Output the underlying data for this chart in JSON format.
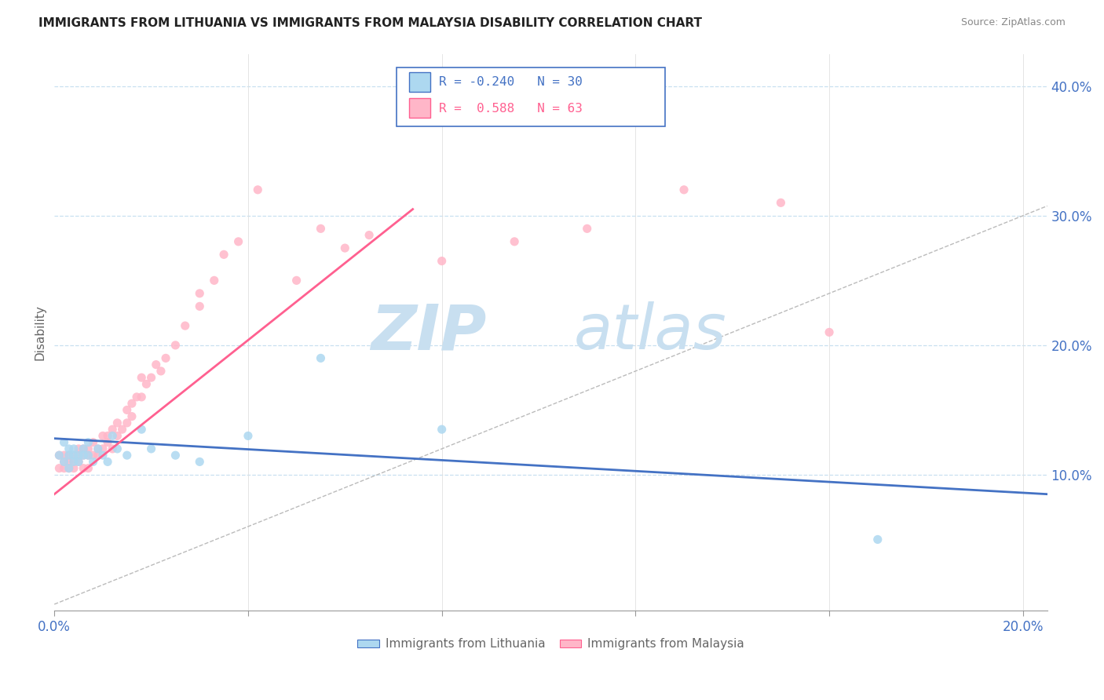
{
  "title": "IMMIGRANTS FROM LITHUANIA VS IMMIGRANTS FROM MALAYSIA DISABILITY CORRELATION CHART",
  "source": "Source: ZipAtlas.com",
  "ylabel": "Disability",
  "xlim": [
    0.0,
    0.205
  ],
  "ylim": [
    -0.005,
    0.425
  ],
  "color_lithuania": "#ADD8F0",
  "color_malaysia": "#FFB6C8",
  "line_color_lithuania": "#4472C4",
  "line_color_malaysia": "#FF6090",
  "R_lithuania": -0.24,
  "N_lithuania": 30,
  "R_malaysia": 0.588,
  "N_malaysia": 63,
  "legend_label_lithuania": "Immigrants from Lithuania",
  "legend_label_malaysia": "Immigrants from Malaysia",
  "lit_x": [
    0.001,
    0.002,
    0.002,
    0.003,
    0.003,
    0.003,
    0.004,
    0.004,
    0.004,
    0.005,
    0.005,
    0.006,
    0.006,
    0.007,
    0.007,
    0.008,
    0.009,
    0.01,
    0.011,
    0.012,
    0.013,
    0.015,
    0.018,
    0.02,
    0.025,
    0.03,
    0.04,
    0.055,
    0.08,
    0.17
  ],
  "lit_y": [
    0.115,
    0.125,
    0.11,
    0.12,
    0.115,
    0.105,
    0.115,
    0.11,
    0.12,
    0.115,
    0.11,
    0.12,
    0.115,
    0.125,
    0.115,
    0.11,
    0.12,
    0.115,
    0.11,
    0.13,
    0.12,
    0.115,
    0.135,
    0.12,
    0.115,
    0.11,
    0.13,
    0.19,
    0.135,
    0.05
  ],
  "mal_x": [
    0.001,
    0.001,
    0.002,
    0.002,
    0.002,
    0.003,
    0.003,
    0.003,
    0.004,
    0.004,
    0.004,
    0.005,
    0.005,
    0.005,
    0.006,
    0.006,
    0.006,
    0.007,
    0.007,
    0.007,
    0.008,
    0.008,
    0.009,
    0.009,
    0.01,
    0.01,
    0.011,
    0.011,
    0.012,
    0.012,
    0.013,
    0.013,
    0.014,
    0.015,
    0.015,
    0.016,
    0.016,
    0.017,
    0.018,
    0.018,
    0.019,
    0.02,
    0.021,
    0.022,
    0.023,
    0.025,
    0.027,
    0.03,
    0.03,
    0.033,
    0.035,
    0.038,
    0.042,
    0.05,
    0.055,
    0.06,
    0.065,
    0.08,
    0.095,
    0.11,
    0.13,
    0.15,
    0.16
  ],
  "mal_y": [
    0.105,
    0.115,
    0.105,
    0.11,
    0.115,
    0.11,
    0.105,
    0.115,
    0.115,
    0.105,
    0.11,
    0.12,
    0.11,
    0.115,
    0.12,
    0.115,
    0.105,
    0.12,
    0.115,
    0.105,
    0.125,
    0.115,
    0.12,
    0.115,
    0.13,
    0.12,
    0.125,
    0.13,
    0.135,
    0.12,
    0.14,
    0.13,
    0.135,
    0.15,
    0.14,
    0.155,
    0.145,
    0.16,
    0.175,
    0.16,
    0.17,
    0.175,
    0.185,
    0.18,
    0.19,
    0.2,
    0.215,
    0.23,
    0.24,
    0.25,
    0.27,
    0.28,
    0.32,
    0.25,
    0.29,
    0.275,
    0.285,
    0.265,
    0.28,
    0.29,
    0.32,
    0.31,
    0.21
  ],
  "diag_slope": 1.5,
  "lit_line_x0": 0.0,
  "lit_line_x1": 0.205,
  "lit_line_y0": 0.128,
  "lit_line_y1": 0.085,
  "mal_line_x0": 0.0,
  "mal_line_x1": 0.074,
  "mal_line_y0": 0.085,
  "mal_line_y1": 0.305
}
